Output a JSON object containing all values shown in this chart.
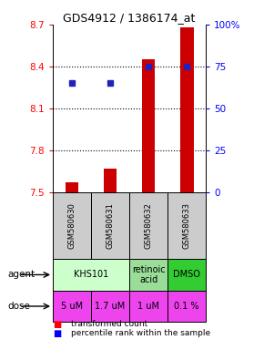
{
  "title": "GDS4912 / 1386174_at",
  "samples": [
    "GSM580630",
    "GSM580631",
    "GSM580632",
    "GSM580633"
  ],
  "bar_values": [
    7.57,
    7.67,
    8.45,
    8.68
  ],
  "bar_baseline": 7.5,
  "percentile_values": [
    65,
    65,
    75,
    75
  ],
  "ylim": [
    7.5,
    8.7
  ],
  "yticks": [
    7.5,
    7.8,
    8.1,
    8.4,
    8.7
  ],
  "grid_lines": [
    7.8,
    8.1,
    8.4
  ],
  "right_yticks": [
    0,
    25,
    50,
    75,
    100
  ],
  "right_ytick_labels": [
    "0",
    "25",
    "50",
    "75",
    "100%"
  ],
  "bar_color": "#cc0000",
  "dot_color": "#2222bb",
  "agent_spans": [
    {
      "start": 0,
      "end": 2,
      "label": "KHS101",
      "color": "#ccffcc"
    },
    {
      "start": 2,
      "end": 3,
      "label": "retinoic\nacid",
      "color": "#99dd99"
    },
    {
      "start": 3,
      "end": 4,
      "label": "DMSO",
      "color": "#33cc33"
    }
  ],
  "dose_labels": [
    "5 uM",
    "1.7 uM",
    "1 uM",
    "0.1 %"
  ],
  "dose_color": "#ee44ee",
  "sample_bg": "#cccccc",
  "legend_red": "transformed count",
  "legend_blue": "percentile rank within the sample"
}
